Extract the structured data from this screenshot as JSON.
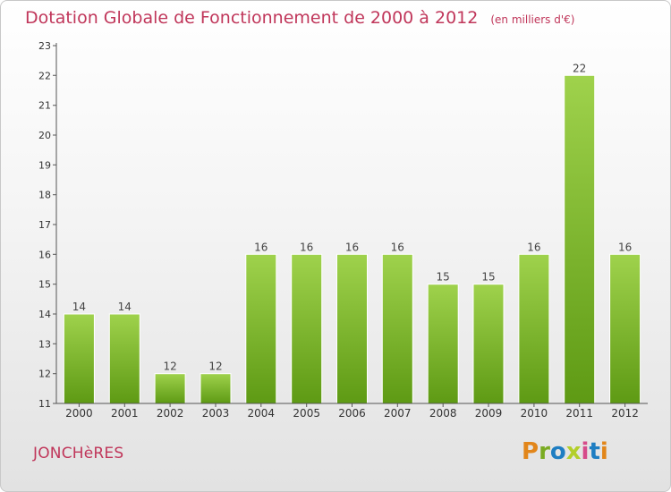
{
  "header": {
    "title": "Dotation Globale de Fonctionnement de 2000 à 2012",
    "subtitle": "(en milliers d'€)"
  },
  "footer": {
    "commune": "JONCHèRES",
    "logo": "Proxiti",
    "logo_colors": [
      "#e2861a",
      "#7aab22",
      "#1f7ec2",
      "#b3cf2a",
      "#d64b8a",
      "#1f7ec2",
      "#e2861a"
    ]
  },
  "chart_data": {
    "type": "bar",
    "categories": [
      "2000",
      "2001",
      "2002",
      "2003",
      "2004",
      "2005",
      "2006",
      "2007",
      "2008",
      "2009",
      "2010",
      "2011",
      "2012"
    ],
    "values": [
      14,
      14,
      12,
      12,
      16,
      16,
      16,
      16,
      15,
      15,
      16,
      22,
      16
    ],
    "data_labels": [
      "14",
      "14",
      "12",
      "12",
      "16",
      "16",
      "16",
      "16",
      "15",
      "15",
      "16",
      "22",
      "16"
    ],
    "ylim": [
      11,
      23
    ],
    "yticks": [
      11,
      12,
      13,
      14,
      15,
      16,
      17,
      18,
      19,
      20,
      21,
      22,
      23
    ],
    "grid": false,
    "bar_color_top": "#9fd24c",
    "bar_color_bottom": "#5e9a14",
    "axis_color": "#555555"
  }
}
